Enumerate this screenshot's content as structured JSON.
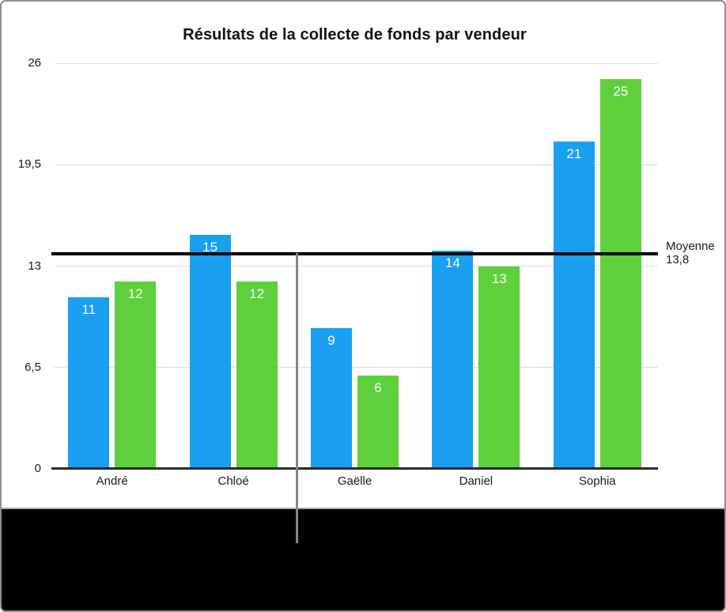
{
  "title": "Résultats de la collecte de fonds par vendeur",
  "chart_data": {
    "type": "bar",
    "title": "Résultats de la collecte de fonds par vendeur",
    "categories": [
      "André",
      "Chloé",
      "Gaëlle",
      "Daniel",
      "Sophia"
    ],
    "series": [
      {
        "color": "#1aa0f0",
        "values": [
          11,
          15,
          9,
          14,
          21
        ]
      },
      {
        "color": "#5dd03c",
        "values": [
          12,
          12,
          6,
          13,
          25
        ]
      }
    ],
    "data_label_color": "#ffffff",
    "ylim": [
      0,
      26
    ],
    "yticks": [
      0,
      6.5,
      13,
      19.5,
      26
    ],
    "ytick_labels": [
      "0",
      "6,5",
      "13",
      "19,5",
      "26"
    ],
    "grid": true,
    "legend": "none",
    "reference_line": {
      "label": "Moyenne",
      "value_label": "13,8",
      "value": 13.8,
      "color": "#000000"
    },
    "marker_line_color": "#868686"
  }
}
